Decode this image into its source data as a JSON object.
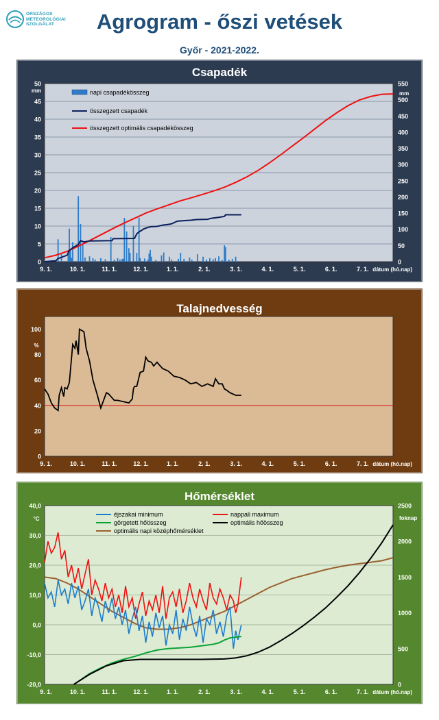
{
  "header": {
    "logo_lines": [
      "ORSZÁGOS",
      "METEOROLÓGIAI",
      "SZOLGÁLAT"
    ],
    "title": "Agrogram - őszi vetések",
    "subtitle": "Győr - 2021-2022."
  },
  "colors": {
    "precip_bg": "#2d3b50",
    "precip_plot": "#ccd3dd",
    "soil_bg": "#6e3c10",
    "soil_plot": "#dbbb96",
    "temp_bg": "#55882e",
    "temp_plot": "#dcebd2",
    "daily_bar": "#2e7bc6",
    "cumulative": "#0b1f5c",
    "optimal": "#ee1111",
    "night_min": "#1c7ccc",
    "day_max": "#ee1111",
    "rolling_heat": "#0aa336",
    "optimal_heat": "#000000",
    "optimal_mean": "#9a6030"
  },
  "chart_data": [
    {
      "type": "bar",
      "title": "Csapadék",
      "ylabel": "mm",
      "y2label": "mm",
      "xlabel": "dátum (hó.nap)",
      "xticks": [
        "9. 1.",
        "10. 1.",
        "11. 1.",
        "12. 1.",
        "1. 1.",
        "2. 1.",
        "3. 1.",
        "4. 1.",
        "5. 1.",
        "6. 1.",
        "7. 1."
      ],
      "xlim": [
        0,
        310
      ],
      "ylim": [
        0,
        50
      ],
      "y2lim": [
        0,
        550
      ],
      "yticks": [
        0,
        5,
        10,
        15,
        20,
        25,
        30,
        35,
        40,
        45,
        50
      ],
      "y2ticks": [
        0,
        50,
        100,
        150,
        200,
        250,
        300,
        350,
        400,
        450,
        500,
        550
      ],
      "grid": true,
      "legend_position": "top-left",
      "series": [
        {
          "name": "napi csapadékösszeg",
          "kind": "bar",
          "axis": "left",
          "x": [
            12,
            15,
            21,
            22,
            23,
            24,
            25,
            30,
            32,
            34,
            36,
            40,
            43,
            45,
            50,
            54,
            59,
            62,
            65,
            67,
            69,
            70,
            71,
            73,
            75,
            76,
            79,
            82,
            84,
            85,
            89,
            92,
            93,
            94,
            95,
            99,
            104,
            106,
            111,
            113,
            119,
            121,
            124,
            129,
            131,
            136,
            141,
            144,
            147,
            150,
            152,
            155,
            158,
            160,
            161,
            164,
            167,
            170
          ],
          "values": [
            6.3,
            2.1,
            3.1,
            9.3,
            3.2,
            1.1,
            5.5,
            18.4,
            10.6,
            4.8,
            1.2,
            1.5,
            1.0,
            0.6,
            1.0,
            0.7,
            6.9,
            0.6,
            1.0,
            0.6,
            0.8,
            0.8,
            12.3,
            8.5,
            3.8,
            2.5,
            10.0,
            2.5,
            12.4,
            1.0,
            0.9,
            0.6,
            2.3,
            3.3,
            1.4,
            0.5,
            1.8,
            2.6,
            1.4,
            0.6,
            0.8,
            2.5,
            0.8,
            1.2,
            0.6,
            2.1,
            1.4,
            0.6,
            1.0,
            0.7,
            1.0,
            1.5,
            0.5,
            4.6,
            4.1,
            0.6,
            0.8,
            1.4
          ]
        },
        {
          "name": "összegzett csapadék",
          "kind": "line",
          "axis": "right",
          "x": [
            0,
            10,
            12,
            14,
            20,
            22,
            25,
            30,
            32,
            35,
            40,
            60,
            61,
            80,
            82,
            84,
            86,
            88,
            92,
            95,
            100,
            105,
            110,
            113,
            118,
            125,
            130,
            135,
            145,
            148,
            155,
            160,
            161,
            170,
            175
          ],
          "values": [
            0,
            3,
            10,
            12,
            20,
            35,
            43,
            53,
            65,
            61,
            64,
            65,
            71,
            72,
            86,
            92,
            96,
            101,
            106,
            108,
            109,
            113,
            115,
            117,
            125,
            127,
            128,
            130,
            131,
            134,
            137,
            140,
            145,
            145,
            145
          ]
        },
        {
          "name": "összegzett optimális csapadékösszeg",
          "kind": "line",
          "axis": "right",
          "x": [
            0,
            10,
            20,
            30,
            40,
            50,
            60,
            70,
            80,
            90,
            100,
            110,
            120,
            130,
            140,
            150,
            160,
            170,
            180,
            190,
            200,
            210,
            220,
            230,
            240,
            250,
            260,
            270,
            280,
            290,
            300,
            310
          ],
          "values": [
            12,
            20,
            32,
            48,
            65,
            83,
            101,
            118,
            134,
            150,
            163,
            175,
            187,
            197,
            207,
            218,
            230,
            245,
            262,
            282,
            305,
            330,
            356,
            382,
            409,
            436,
            460,
            482,
            499,
            510,
            517,
            518
          ]
        }
      ]
    },
    {
      "type": "line",
      "title": "Talajnedvesség",
      "ylabel": "%",
      "xlabel": "dátum (hó.nap)",
      "xticks": [
        "9. 1.",
        "10. 1.",
        "11. 1.",
        "12. 1.",
        "1. 1.",
        "2. 1.",
        "3. 1.",
        "4. 1.",
        "5. 1.",
        "6. 1.",
        "7. 1."
      ],
      "xlim": [
        0,
        310
      ],
      "ylim": [
        0,
        110
      ],
      "yticks": [
        0,
        20,
        40,
        60,
        80,
        100
      ],
      "reference_line": 40,
      "series": [
        {
          "kind": "line",
          "x": [
            0,
            3,
            6,
            9,
            12,
            13,
            15,
            17,
            18,
            20,
            22,
            25,
            27,
            28,
            30,
            31,
            33,
            35,
            37,
            40,
            43,
            47,
            50,
            55,
            57,
            59,
            62,
            65,
            70,
            75,
            78,
            79,
            80,
            82,
            85,
            88,
            90,
            92,
            95,
            97,
            100,
            102,
            105,
            110,
            115,
            120,
            125,
            130,
            135,
            140,
            145,
            150,
            152,
            155,
            158,
            160,
            162,
            165,
            170,
            175
          ],
          "values": [
            53,
            49,
            42,
            38,
            36,
            48,
            54,
            47,
            54,
            53,
            58,
            88,
            85,
            91,
            80,
            100,
            99,
            98,
            85,
            75,
            60,
            48,
            38,
            50,
            49,
            47,
            44,
            44,
            43,
            42,
            45,
            53,
            55,
            55,
            66,
            67,
            78,
            75,
            74,
            71,
            74,
            72,
            69,
            67,
            63,
            62,
            60,
            57,
            58,
            55,
            57,
            55,
            61,
            57,
            57,
            53,
            52,
            50,
            48,
            48
          ]
        }
      ]
    },
    {
      "type": "line",
      "title": "Hőmérséklet",
      "ylabel": "°C",
      "y2label": "foknap",
      "xlabel": "dátum (hó.nap)",
      "xticks": [
        "9. 1.",
        "10. 1.",
        "11. 1.",
        "12. 1.",
        "1. 1.",
        "2. 1.",
        "3. 1.",
        "4. 1.",
        "5. 1.",
        "6. 1.",
        "7. 1."
      ],
      "xlim": [
        0,
        310
      ],
      "ylim": [
        -20,
        40
      ],
      "y2lim": [
        0,
        2500
      ],
      "yticks": [
        "-20,0",
        "-10,0",
        "0,0",
        "10,0",
        "20,0",
        "30,0",
        "40,0"
      ],
      "y2ticks": [
        0,
        500,
        1000,
        1500,
        2000,
        2500
      ],
      "legend_position": "top",
      "series": [
        {
          "name": "éjszakai minimum",
          "kind": "line",
          "axis": "left",
          "x": [
            0,
            3,
            6,
            9,
            12,
            15,
            18,
            21,
            24,
            27,
            30,
            33,
            36,
            39,
            42,
            45,
            48,
            51,
            54,
            57,
            60,
            63,
            66,
            69,
            72,
            75,
            78,
            81,
            84,
            87,
            90,
            93,
            96,
            99,
            102,
            105,
            108,
            111,
            114,
            117,
            120,
            123,
            126,
            129,
            132,
            135,
            138,
            141,
            144,
            147,
            150,
            153,
            156,
            159,
            162,
            165,
            168,
            170,
            172,
            175
          ],
          "values": [
            14,
            9,
            11,
            6,
            15,
            10,
            12,
            7,
            14,
            9,
            13,
            5,
            8,
            12,
            3,
            9,
            6,
            1,
            8,
            4,
            9,
            2,
            6,
            0,
            5,
            -3,
            2,
            6,
            -2,
            3,
            -6,
            1,
            -4,
            4,
            -1,
            3,
            -7,
            0,
            -3,
            5,
            -5,
            2,
            -2,
            6,
            0,
            -4,
            3,
            -6,
            2,
            0,
            5,
            -3,
            1,
            -4,
            3,
            6,
            -8,
            -2,
            -5,
            0
          ]
        },
        {
          "name": "nappali maximum",
          "kind": "line",
          "axis": "left",
          "x": [
            0,
            3,
            6,
            9,
            12,
            15,
            18,
            21,
            24,
            27,
            30,
            33,
            36,
            39,
            42,
            45,
            48,
            51,
            54,
            57,
            60,
            63,
            66,
            69,
            72,
            75,
            78,
            81,
            84,
            87,
            90,
            93,
            96,
            99,
            102,
            105,
            108,
            111,
            114,
            117,
            120,
            123,
            126,
            129,
            132,
            135,
            138,
            141,
            144,
            147,
            150,
            153,
            156,
            159,
            162,
            165,
            168,
            170,
            172,
            175
          ],
          "values": [
            21,
            28,
            24,
            26,
            31,
            22,
            25,
            16,
            20,
            14,
            19,
            12,
            17,
            22,
            10,
            15,
            12,
            8,
            14,
            9,
            12,
            6,
            10,
            4,
            13,
            6,
            9,
            2,
            7,
            11,
            3,
            8,
            5,
            10,
            4,
            13,
            2,
            9,
            11,
            6,
            12,
            4,
            8,
            14,
            9,
            6,
            12,
            8,
            5,
            14,
            9,
            7,
            12,
            9,
            5,
            10,
            8,
            4,
            7,
            16
          ]
        },
        {
          "name": "görgetett hőösszeg",
          "kind": "line",
          "axis": "right",
          "x": [
            30,
            40,
            50,
            60,
            70,
            80,
            90,
            100,
            110,
            120,
            130,
            140,
            150,
            155,
            160,
            165,
            170,
            175
          ],
          "values": [
            40,
            150,
            230,
            300,
            350,
            390,
            440,
            480,
            500,
            510,
            520,
            540,
            560,
            580,
            620,
            650,
            660,
            670
          ]
        },
        {
          "name": "optimális hőösszeg",
          "kind": "line",
          "axis": "right",
          "x": [
            26,
            40,
            55,
            70,
            85,
            100,
            120,
            140,
            160,
            170,
            180,
            190,
            200,
            210,
            220,
            230,
            240,
            250,
            260,
            270,
            280,
            290,
            300,
            310
          ],
          "values": [
            0,
            140,
            260,
            330,
            350,
            350,
            350,
            350,
            355,
            370,
            400,
            450,
            520,
            610,
            710,
            820,
            940,
            1070,
            1220,
            1380,
            1560,
            1760,
            1980,
            2230
          ]
        },
        {
          "name": "optimális napi középhőmérséklet",
          "kind": "line",
          "axis": "left",
          "x": [
            0,
            10,
            20,
            30,
            40,
            50,
            60,
            70,
            80,
            90,
            100,
            110,
            120,
            130,
            140,
            150,
            160,
            170,
            180,
            190,
            200,
            210,
            220,
            230,
            240,
            250,
            260,
            270,
            280,
            290,
            300,
            310
          ],
          "values": [
            16,
            15.5,
            14,
            12,
            9.5,
            7,
            4.5,
            2.5,
            0.5,
            -1,
            -1.5,
            -1.5,
            -1,
            0,
            1.5,
            3,
            4.5,
            6.5,
            8.5,
            10.5,
            12.5,
            14,
            15.5,
            16.5,
            17.5,
            18.5,
            19.3,
            20,
            20.5,
            21,
            21.5,
            22.5
          ]
        }
      ]
    }
  ]
}
